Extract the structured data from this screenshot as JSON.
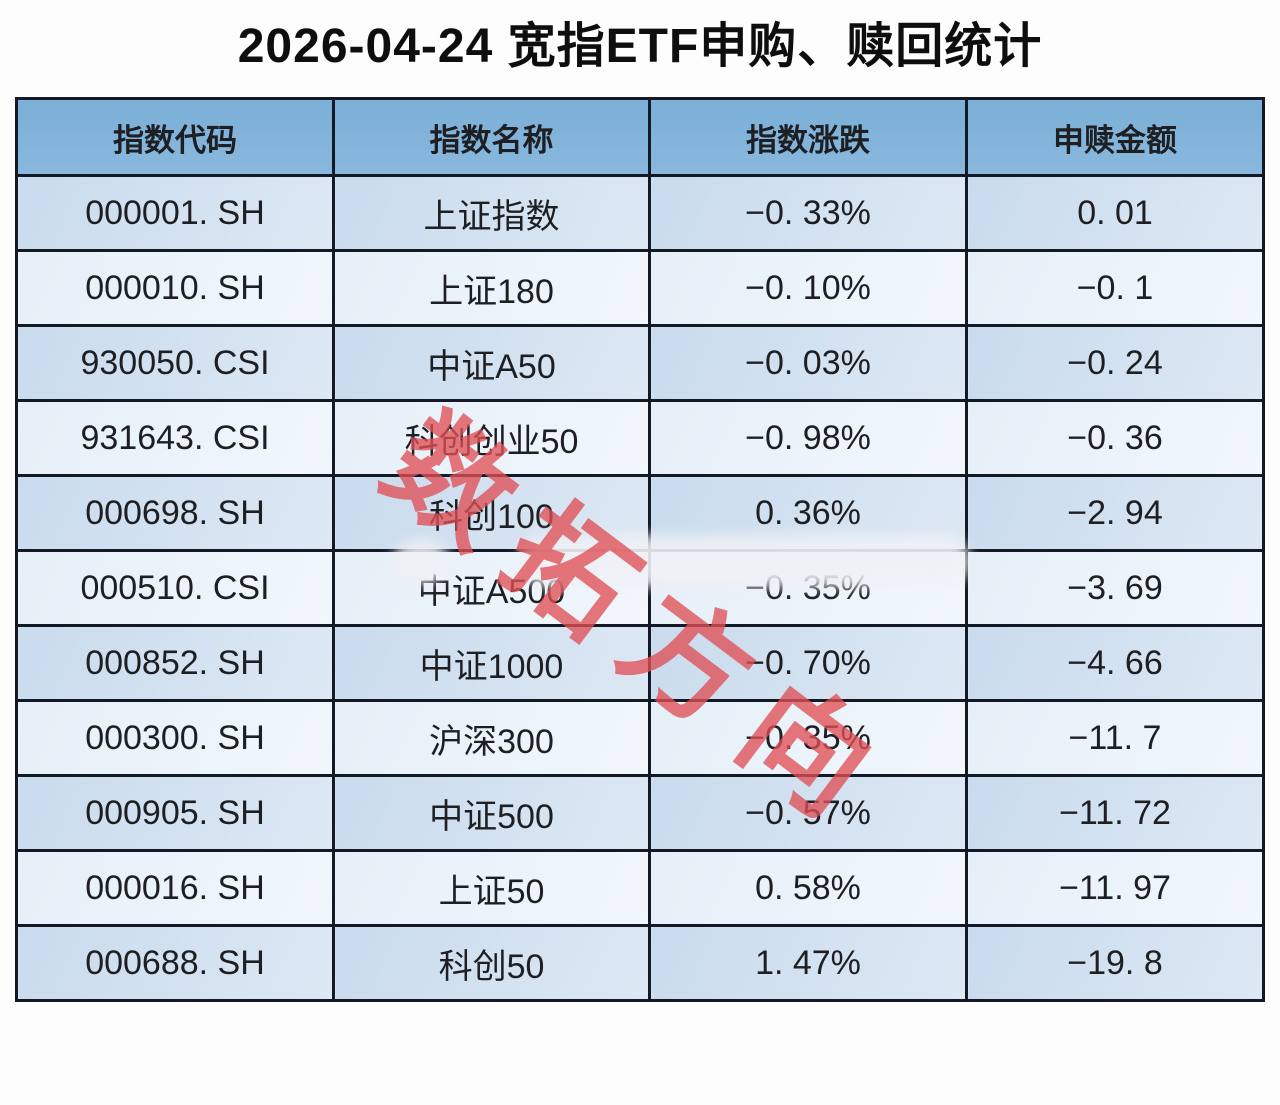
{
  "title": "2026-04-24 宽指ETF申购、赎回统计",
  "watermark": "数拓方向",
  "colors": {
    "header_blue": "#7bafd7",
    "row_odd": "#c9dbed",
    "row_even": "#e6eff8",
    "border": "#131a26",
    "text": "#1d1f23",
    "watermark_red": "#df5056",
    "page_background": "#fdfdfd"
  },
  "chart_data": {
    "type": "table",
    "title": "2026-04-24 宽指ETF申购、赎回统计",
    "columns": [
      "指数代码",
      "指数名称",
      "指数涨跌",
      "申赎金额"
    ],
    "rows": [
      {
        "code": "000001. SH",
        "name": "上证指数",
        "change": "−0. 33%",
        "amount": "0. 01"
      },
      {
        "code": "000010. SH",
        "name": "上证180",
        "change": "−0. 10%",
        "amount": "−0. 1"
      },
      {
        "code": "930050. CSI",
        "name": "中证A50",
        "change": "−0. 03%",
        "amount": "−0. 24"
      },
      {
        "code": "931643. CSI",
        "name": "科创创业50",
        "change": "−0. 98%",
        "amount": "−0. 36"
      },
      {
        "code": "000698. SH",
        "name": "科创100",
        "change": "0. 36%",
        "amount": "−2. 94"
      },
      {
        "code": "000510. CSI",
        "name": "中证A500",
        "change": "−0. 35%",
        "amount": "−3. 69"
      },
      {
        "code": "000852. SH",
        "name": "中证1000",
        "change": "−0. 70%",
        "amount": "−4. 66"
      },
      {
        "code": "000300. SH",
        "name": "沪深300",
        "change": "−0. 35%",
        "amount": "−11. 7"
      },
      {
        "code": "000905. SH",
        "name": "中证500",
        "change": "−0. 57%",
        "amount": "−11. 72"
      },
      {
        "code": "000016. SH",
        "name": "上证50",
        "change": "0. 58%",
        "amount": "−11. 97"
      },
      {
        "code": "000688. SH",
        "name": "科创50",
        "change": "1. 47%",
        "amount": "−19. 8"
      }
    ]
  },
  "table": {
    "headers": [
      "指数代码",
      "指数名称",
      "指数涨跌",
      "申赎金额"
    ]
  }
}
